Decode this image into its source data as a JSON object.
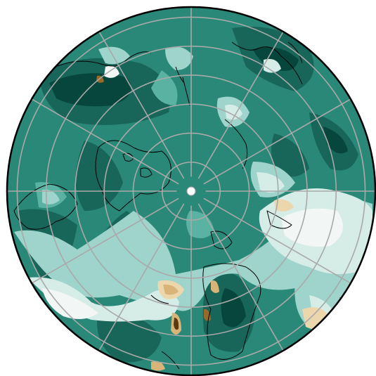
{
  "map": {
    "projection": "north-polar-stereographic",
    "field": "filled-contour",
    "colors": {
      "darkest_teal": "#07463c",
      "dark_teal": "#18655a",
      "teal": "#2a8878",
      "mid_teal": "#5ab2a3",
      "light_teal": "#9ed4cb",
      "pale_teal": "#d5ece7",
      "near_white": "#f2f6f4",
      "pale_tan": "#ecd7ad",
      "tan": "#d8b478",
      "brown": "#9a6a2a",
      "dark_brown": "#5a3a10",
      "gridline": "#a9a9a9",
      "coastline": "#000000",
      "boundary": "#000000"
    },
    "graticule": {
      "latitude_circles": 6,
      "meridians": 12
    }
  }
}
